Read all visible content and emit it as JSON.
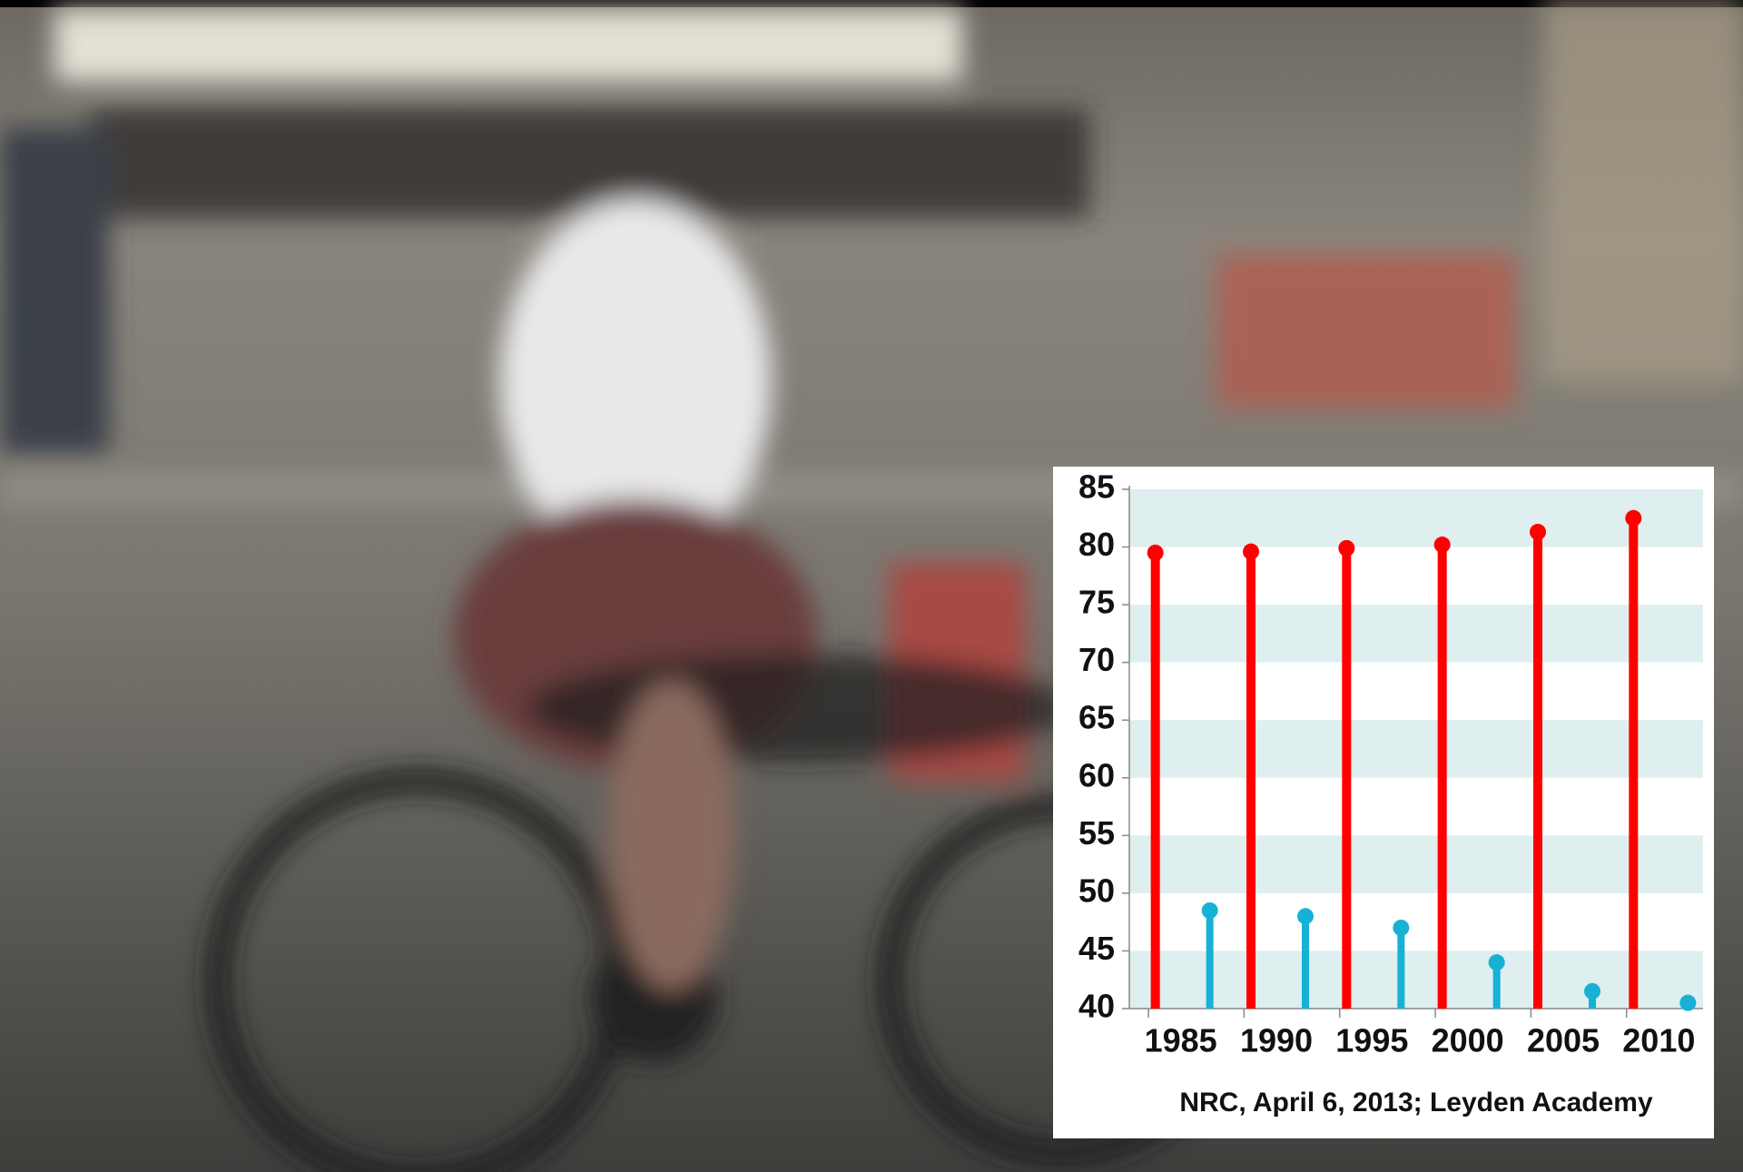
{
  "chart_data": {
    "type": "lollipop",
    "categories": [
      "1985",
      "1990",
      "1995",
      "2000",
      "2005",
      "2010"
    ],
    "series": [
      {
        "color": "#ff0000",
        "values": [
          79.5,
          79.6,
          79.9,
          80.2,
          81.3,
          82.5
        ]
      },
      {
        "color": "#17b1d6",
        "values": [
          48.5,
          48,
          47,
          44,
          41.5,
          40.5
        ]
      }
    ],
    "ylim": [
      40,
      85
    ],
    "yticks": [
      40,
      45,
      50,
      55,
      60,
      65,
      70,
      75,
      80,
      85
    ],
    "band_color": "#dfeeee",
    "source": "NRC, April 6, 2013; Leyden Academy"
  }
}
